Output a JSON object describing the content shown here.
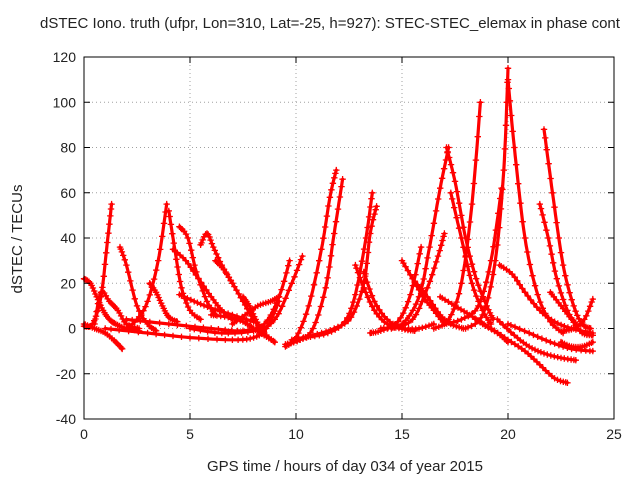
{
  "chart_data": {
    "type": "line",
    "title": "dSTEC Iono. truth (ufpr, Lon=310, Lat=-25, h=927): STEC-STEC_elemax in phase cont",
    "xlabel": "GPS time / hours of day 034 of year 2015",
    "ylabel": "dSTEC  / TECUs",
    "xlim": [
      0,
      25
    ],
    "ylim": [
      -40,
      120
    ],
    "xticks": [
      0,
      5,
      10,
      15,
      20,
      25
    ],
    "yticks": [
      -40,
      -20,
      0,
      20,
      40,
      60,
      80,
      100,
      120
    ],
    "grid": true,
    "legend": "none",
    "marker": "plus",
    "color": "#ff0000",
    "series": [
      {
        "x": [
          0.0,
          0.3,
          0.6,
          0.9,
          1.2,
          1.5,
          2.0,
          2.6
        ],
        "y": [
          22,
          20,
          14,
          8,
          4,
          2,
          0,
          -1
        ]
      },
      {
        "x": [
          0.0,
          0.4,
          0.8,
          1.1,
          1.3
        ],
        "y": [
          1,
          2,
          14,
          38,
          55
        ]
      },
      {
        "x": [
          0.0,
          0.5,
          1.0,
          1.5,
          1.8
        ],
        "y": [
          2,
          0,
          -2,
          -6,
          -9
        ]
      },
      {
        "x": [
          0.5,
          0.8,
          1.2,
          1.6,
          2.0,
          2.6
        ],
        "y": [
          2,
          16,
          12,
          8,
          2,
          0
        ]
      },
      {
        "x": [
          1.7,
          2.0,
          2.5,
          3.0,
          3.4
        ],
        "y": [
          36,
          28,
          10,
          2,
          -1
        ]
      },
      {
        "x": [
          2.0,
          2.5,
          3.0,
          3.5,
          3.9
        ],
        "y": [
          0,
          4,
          12,
          30,
          55
        ]
      },
      {
        "x": [
          3.1,
          3.4,
          3.7,
          4.0,
          4.4
        ],
        "y": [
          20,
          16,
          10,
          5,
          3
        ]
      },
      {
        "x": [
          4.0,
          4.3,
          4.6,
          5.0,
          5.5
        ],
        "y": [
          52,
          34,
          18,
          8,
          4
        ]
      },
      {
        "x": [
          4.5,
          4.9,
          5.3,
          5.8,
          6.2
        ],
        "y": [
          45,
          40,
          25,
          12,
          6
        ]
      },
      {
        "x": [
          4.2,
          4.8,
          5.4,
          6.0,
          6.5,
          7.0
        ],
        "y": [
          35,
          30,
          22,
          14,
          8,
          4
        ]
      },
      {
        "x": [
          4.5,
          5.2,
          6.0,
          7.0,
          8.0
        ],
        "y": [
          15,
          12,
          9,
          6,
          3
        ]
      },
      {
        "x": [
          5.5,
          5.8,
          6.1,
          6.5,
          7.0
        ],
        "y": [
          37,
          42,
          36,
          28,
          20
        ]
      },
      {
        "x": [
          6.2,
          6.6,
          7.0,
          7.5,
          8.0,
          8.5
        ],
        "y": [
          30,
          26,
          20,
          12,
          4,
          -2
        ]
      },
      {
        "x": [
          7.5,
          7.8,
          8.1,
          8.5,
          9.0
        ],
        "y": [
          14,
          10,
          4,
          -2,
          -6
        ]
      },
      {
        "x": [
          1.0,
          3.0,
          5.0,
          7.0,
          8.0,
          8.6,
          9.2
        ],
        "y": [
          0,
          -2,
          -4,
          -5,
          -4,
          0,
          12
        ]
      },
      {
        "x": [
          2.0,
          4.0,
          6.0,
          7.5,
          8.5,
          9.2,
          9.7
        ],
        "y": [
          4,
          2,
          0,
          -1,
          2,
          14,
          30
        ]
      },
      {
        "x": [
          5.0,
          6.5,
          8.0,
          9.0,
          9.8,
          10.3
        ],
        "y": [
          0,
          -2,
          -1,
          4,
          20,
          32
        ]
      },
      {
        "x": [
          7.0,
          7.6,
          8.2,
          8.8,
          9.2
        ],
        "y": [
          2,
          6,
          10,
          12,
          14
        ]
      },
      {
        "x": [
          6.0,
          6.8,
          7.5,
          8.0,
          8.5,
          9.0
        ],
        "y": [
          6,
          5,
          3,
          0,
          -3,
          -6
        ]
      },
      {
        "x": [
          9.5,
          10.0,
          10.6,
          11.2,
          11.6,
          11.9
        ],
        "y": [
          -8,
          -4,
          10,
          35,
          58,
          70
        ]
      },
      {
        "x": [
          9.5,
          10.2,
          10.8,
          11.4,
          11.8,
          12.2
        ],
        "y": [
          -7,
          -5,
          0,
          18,
          42,
          66
        ]
      },
      {
        "x": [
          9.8,
          10.5,
          11.5,
          12.3,
          12.8,
          13.3,
          13.6
        ],
        "y": [
          -6,
          -4,
          -2,
          3,
          15,
          40,
          60
        ]
      },
      {
        "x": [
          9.8,
          10.8,
          11.8,
          12.6,
          13.2,
          13.5,
          13.8
        ],
        "y": [
          -5,
          -3,
          0,
          5,
          20,
          42,
          54
        ]
      },
      {
        "x": [
          12.8,
          13.2,
          13.7,
          14.3,
          15.0,
          15.8,
          16.5
        ],
        "y": [
          28,
          18,
          8,
          2,
          0,
          0,
          2
        ]
      },
      {
        "x": [
          13.2,
          13.7,
          14.3,
          15.0,
          15.6
        ],
        "y": [
          25,
          12,
          4,
          0,
          -1
        ]
      },
      {
        "x": [
          13.5,
          14.0,
          14.8,
          15.4,
          15.9
        ],
        "y": [
          -2,
          -1,
          3,
          15,
          36
        ]
      },
      {
        "x": [
          15.0,
          15.5,
          16.0,
          16.5,
          17.0
        ],
        "y": [
          30,
          22,
          14,
          8,
          2
        ]
      },
      {
        "x": [
          15.5,
          16.2,
          16.8,
          17.3,
          17.9
        ],
        "y": [
          22,
          14,
          6,
          2,
          0
        ]
      },
      {
        "x": [
          14.0,
          15.0,
          15.8,
          16.3,
          16.8,
          17.2
        ],
        "y": [
          0,
          2,
          14,
          36,
          62,
          80
        ]
      },
      {
        "x": [
          14.5,
          15.5,
          16.2,
          16.7,
          17.0
        ],
        "y": [
          0,
          4,
          18,
          32,
          42
        ]
      },
      {
        "x": [
          17.1,
          17.5,
          18.0,
          18.5,
          19.0,
          19.3
        ],
        "y": [
          80,
          65,
          40,
          22,
          10,
          4
        ]
      },
      {
        "x": [
          17.3,
          17.8,
          18.3,
          18.8,
          19.2
        ],
        "y": [
          60,
          40,
          20,
          8,
          2
        ]
      },
      {
        "x": [
          16.8,
          17.5,
          18.2,
          18.8,
          19.5,
          20.0
        ],
        "y": [
          14,
          10,
          6,
          2,
          -2,
          -6
        ]
      },
      {
        "x": [
          16.5,
          17.2,
          17.8,
          18.3,
          18.7
        ],
        "y": [
          0,
          4,
          20,
          55,
          100
        ]
      },
      {
        "x": [
          17.0,
          17.8,
          18.6,
          19.2,
          19.7
        ],
        "y": [
          2,
          4,
          10,
          30,
          62
        ]
      },
      {
        "x": [
          18.0,
          18.8,
          19.4,
          19.8,
          20.0
        ],
        "y": [
          0,
          6,
          30,
          70,
          115
        ]
      },
      {
        "x": [
          20.0,
          20.3,
          20.8,
          21.4,
          22.0,
          22.6
        ],
        "y": [
          110,
          80,
          40,
          15,
          3,
          -2
        ]
      },
      {
        "x": [
          19.6,
          20.2,
          20.8,
          21.5,
          22.2,
          23.0,
          24.0
        ],
        "y": [
          28,
          24,
          16,
          8,
          3,
          0,
          -2
        ]
      },
      {
        "x": [
          18.5,
          19.2,
          20.0,
          20.8,
          21.5,
          22.2,
          22.8
        ],
        "y": [
          4,
          0,
          -5,
          -10,
          -16,
          -22,
          -24
        ]
      },
      {
        "x": [
          19.5,
          20.3,
          21.0,
          21.7,
          22.5,
          23.2
        ],
        "y": [
          4,
          -3,
          -8,
          -11,
          -13,
          -14
        ]
      },
      {
        "x": [
          21.5,
          21.9,
          22.3,
          22.8,
          23.2
        ],
        "y": [
          55,
          40,
          22,
          8,
          2
        ]
      },
      {
        "x": [
          21.7,
          22.1,
          22.6,
          23.1,
          23.5,
          23.9
        ],
        "y": [
          88,
          60,
          28,
          10,
          2,
          0
        ]
      },
      {
        "x": [
          22.0,
          22.5,
          23.0,
          23.5,
          24.0
        ],
        "y": [
          16,
          10,
          4,
          -2,
          -3
        ]
      },
      {
        "x": [
          22.5,
          23.0,
          23.5,
          24.0
        ],
        "y": [
          -6,
          -8,
          -8,
          -6
        ]
      },
      {
        "x": [
          22.6,
          23.1,
          23.6,
          24.0
        ],
        "y": [
          -1,
          0,
          4,
          13
        ]
      },
      {
        "x": [
          20.0,
          21.0,
          22.0,
          23.0,
          24.0
        ],
        "y": [
          2,
          -2,
          -6,
          -9,
          -10
        ]
      }
    ]
  }
}
